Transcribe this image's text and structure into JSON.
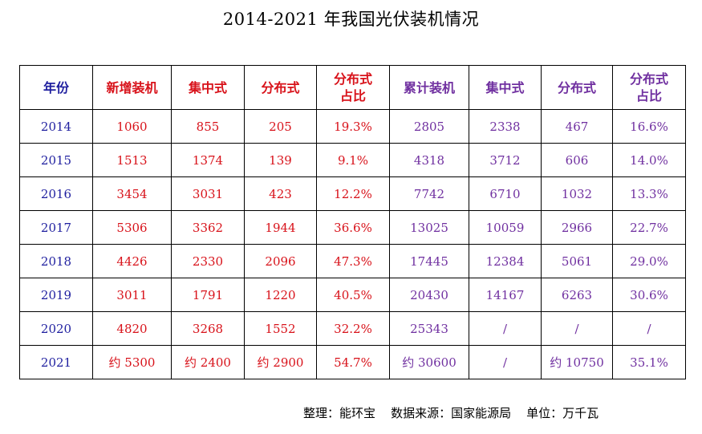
{
  "title": "2014-2021 年我国光伏装机情况",
  "columns": [
    {
      "label": [
        "年份"
      ],
      "color": "year"
    },
    {
      "label": [
        "新增装机"
      ],
      "color": "red"
    },
    {
      "label": [
        "集中式"
      ],
      "color": "red"
    },
    {
      "label": [
        "分布式"
      ],
      "color": "red"
    },
    {
      "label": [
        "分布式",
        "占比"
      ],
      "color": "red"
    },
    {
      "label": [
        "累计装机"
      ],
      "color": "purple"
    },
    {
      "label": [
        "集中式"
      ],
      "color": "purple"
    },
    {
      "label": [
        "分布式"
      ],
      "color": "purple"
    },
    {
      "label": [
        "分布式",
        "占比"
      ],
      "color": "purple"
    }
  ],
  "rows": [
    [
      "2014",
      "1060",
      "855",
      "205",
      "19.3%",
      "2805",
      "2338",
      "467",
      "16.6%"
    ],
    [
      "2015",
      "1513",
      "1374",
      "139",
      "9.1%",
      "4318",
      "3712",
      "606",
      "14.0%"
    ],
    [
      "2016",
      "3454",
      "3031",
      "423",
      "12.2%",
      "7742",
      "6710",
      "1032",
      "13.3%"
    ],
    [
      "2017",
      "5306",
      "3362",
      "1944",
      "36.6%",
      "13025",
      "10059",
      "2966",
      "22.7%"
    ],
    [
      "2018",
      "4426",
      "2330",
      "2096",
      "47.3%",
      "17445",
      "12384",
      "5061",
      "29.0%"
    ],
    [
      "2019",
      "3011",
      "1791",
      "1220",
      "40.5%",
      "20430",
      "14167",
      "6263",
      "30.6%"
    ],
    [
      "2020",
      "4820",
      "3268",
      "1552",
      "32.2%",
      "25343",
      "/",
      "/",
      "/"
    ],
    [
      "2021",
      "约 5300",
      "约 2400",
      "约 2900",
      "54.7%",
      "约 30600",
      "/",
      "约 10750",
      "35.1%"
    ]
  ],
  "footer": "整理：能环宝    数据来源：国家能源局    单位：万千瓦",
  "colors": {
    "year": "#1f1f9f",
    "red": "#d8121a",
    "purple": "#7030a0"
  }
}
